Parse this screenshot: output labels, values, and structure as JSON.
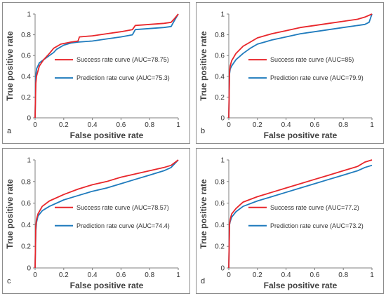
{
  "colors": {
    "success": "#e8262b",
    "prediction": "#1f7bbd",
    "axis": "#7f7f7f"
  },
  "chart_data": [
    {
      "type": "line",
      "panel_label": "a",
      "xlabel": "False positive rate",
      "ylabel": "True positive rate",
      "xlim": [
        0,
        1
      ],
      "ylim": [
        0,
        1
      ],
      "xticks": [
        "0",
        "0.2",
        "0.4",
        "0.6",
        "0.8",
        "1"
      ],
      "yticks": [
        "0",
        "0.2",
        "0.4",
        "0.6",
        "0.8",
        "1"
      ],
      "legend_position": "middle-left",
      "series": [
        {
          "name": "Success rate curve (AUC=78.75)",
          "color": "#e8262b",
          "x": [
            0,
            0.005,
            0.01,
            0.03,
            0.06,
            0.1,
            0.13,
            0.18,
            0.25,
            0.3,
            0.31,
            0.4,
            0.5,
            0.6,
            0.68,
            0.7,
            0.8,
            0.9,
            0.95,
            0.97,
            1
          ],
          "y": [
            0,
            0.33,
            0.4,
            0.5,
            0.56,
            0.62,
            0.67,
            0.71,
            0.73,
            0.74,
            0.78,
            0.79,
            0.81,
            0.83,
            0.85,
            0.89,
            0.9,
            0.91,
            0.92,
            0.95,
            1
          ]
        },
        {
          "name": "Prediction rate curve (AUC=75.3)",
          "color": "#1f7bbd",
          "x": [
            0,
            0.005,
            0.01,
            0.03,
            0.06,
            0.1,
            0.13,
            0.15,
            0.2,
            0.25,
            0.3,
            0.4,
            0.5,
            0.6,
            0.68,
            0.7,
            0.8,
            0.9,
            0.95,
            0.97,
            1
          ],
          "y": [
            0,
            0.4,
            0.47,
            0.53,
            0.56,
            0.6,
            0.63,
            0.66,
            0.7,
            0.72,
            0.73,
            0.74,
            0.76,
            0.78,
            0.8,
            0.85,
            0.86,
            0.87,
            0.88,
            0.93,
            1
          ]
        }
      ]
    },
    {
      "type": "line",
      "panel_label": "b",
      "xlabel": "False positive rate",
      "ylabel": "True positive rate",
      "xlim": [
        0,
        1
      ],
      "ylim": [
        0,
        1
      ],
      "xticks": [
        "0",
        "0.2",
        "0.4",
        "0.6",
        "0.8",
        "1"
      ],
      "yticks": [
        "0",
        "0.2",
        "0.4",
        "0.6",
        "0.8",
        "1"
      ],
      "legend_position": "middle-left",
      "series": [
        {
          "name": "Success rate curve (AUC=85)",
          "color": "#e8262b",
          "x": [
            0,
            0.005,
            0.01,
            0.02,
            0.05,
            0.1,
            0.15,
            0.2,
            0.3,
            0.4,
            0.5,
            0.6,
            0.7,
            0.8,
            0.9,
            0.95,
            1
          ],
          "y": [
            0,
            0.44,
            0.5,
            0.55,
            0.62,
            0.69,
            0.73,
            0.77,
            0.81,
            0.84,
            0.87,
            0.89,
            0.91,
            0.93,
            0.95,
            0.97,
            1
          ]
        },
        {
          "name": "Prediction rate curve (AUC=79.9)",
          "color": "#1f7bbd",
          "x": [
            0,
            0.005,
            0.01,
            0.02,
            0.05,
            0.1,
            0.15,
            0.2,
            0.3,
            0.4,
            0.5,
            0.6,
            0.7,
            0.8,
            0.9,
            0.95,
            0.98,
            1
          ],
          "y": [
            0,
            0.42,
            0.47,
            0.5,
            0.56,
            0.62,
            0.67,
            0.71,
            0.75,
            0.78,
            0.81,
            0.83,
            0.85,
            0.87,
            0.89,
            0.9,
            0.92,
            1
          ]
        }
      ]
    },
    {
      "type": "line",
      "panel_label": "c",
      "xlabel": "False positive rate",
      "ylabel": "True positive rate",
      "xlim": [
        0,
        1
      ],
      "ylim": [
        0,
        1
      ],
      "xticks": [
        "0",
        "0.2",
        "0.4",
        "0.6",
        "0.8",
        "1"
      ],
      "yticks": [
        "0",
        "0.2",
        "0.4",
        "0.6",
        "0.8",
        "1"
      ],
      "legend_position": "middle-left",
      "series": [
        {
          "name": "Success rate curve (AUC=78.57)",
          "color": "#e8262b",
          "x": [
            0,
            0.005,
            0.01,
            0.02,
            0.05,
            0.1,
            0.2,
            0.3,
            0.4,
            0.5,
            0.6,
            0.7,
            0.8,
            0.9,
            0.95,
            1
          ],
          "y": [
            0,
            0.38,
            0.45,
            0.5,
            0.57,
            0.62,
            0.68,
            0.73,
            0.77,
            0.8,
            0.84,
            0.87,
            0.9,
            0.93,
            0.95,
            1
          ]
        },
        {
          "name": "Prediction rate curve (AUC=74.4)",
          "color": "#1f7bbd",
          "x": [
            0,
            0.005,
            0.01,
            0.02,
            0.05,
            0.1,
            0.2,
            0.3,
            0.4,
            0.5,
            0.6,
            0.7,
            0.8,
            0.9,
            0.95,
            1
          ],
          "y": [
            0,
            0.34,
            0.42,
            0.48,
            0.53,
            0.57,
            0.63,
            0.67,
            0.71,
            0.74,
            0.78,
            0.82,
            0.86,
            0.9,
            0.93,
            1
          ]
        }
      ]
    },
    {
      "type": "line",
      "panel_label": "d",
      "xlabel": "False positive rate",
      "ylabel": "True positive rate",
      "xlim": [
        0,
        1
      ],
      "ylim": [
        0,
        1
      ],
      "xticks": [
        "0",
        "0.2",
        "0.4",
        "0.6",
        "0.8",
        "1"
      ],
      "yticks": [
        "0",
        "0.2",
        "0.4",
        "0.6",
        "0.8",
        "1"
      ],
      "legend_position": "middle-left",
      "series": [
        {
          "name": "Success rate curve (AUC=77.2)",
          "color": "#e8262b",
          "x": [
            0,
            0.005,
            0.01,
            0.02,
            0.05,
            0.1,
            0.2,
            0.3,
            0.4,
            0.5,
            0.6,
            0.7,
            0.8,
            0.9,
            0.95,
            1
          ],
          "y": [
            0,
            0.4,
            0.45,
            0.5,
            0.55,
            0.61,
            0.66,
            0.7,
            0.74,
            0.78,
            0.82,
            0.86,
            0.9,
            0.94,
            0.98,
            1
          ]
        },
        {
          "name": "Prediction rate curve (AUC=73.2)",
          "color": "#1f7bbd",
          "x": [
            0,
            0.005,
            0.01,
            0.02,
            0.05,
            0.1,
            0.2,
            0.3,
            0.4,
            0.5,
            0.6,
            0.7,
            0.8,
            0.9,
            0.95,
            1
          ],
          "y": [
            0,
            0.4,
            0.43,
            0.47,
            0.52,
            0.57,
            0.62,
            0.66,
            0.7,
            0.74,
            0.78,
            0.82,
            0.86,
            0.9,
            0.93,
            0.95
          ]
        }
      ]
    }
  ]
}
